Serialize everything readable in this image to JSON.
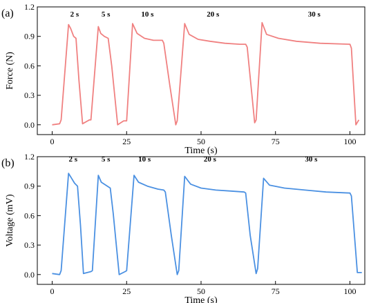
{
  "chart_data": [
    {
      "type": "line",
      "panel_label": "(a)",
      "xlabel": "Time (s)",
      "ylabel": "Force (N)",
      "xlim": [
        -5,
        105
      ],
      "ylim": [
        -0.1,
        1.2
      ],
      "xticks": [
        0,
        25,
        50,
        75,
        100
      ],
      "yticks": [
        0.0,
        0.3,
        0.6,
        0.9,
        1.2
      ],
      "xtick_labels": [
        "0",
        "25",
        "50",
        "75",
        "100"
      ],
      "ytick_labels": [
        "0.0",
        "0.3",
        "0.6",
        "0.9",
        "1.2"
      ],
      "grid": false,
      "color": "#f08080",
      "annotations": [
        {
          "text": "2 s",
          "x": 7.5,
          "y": 1.1
        },
        {
          "text": "5 s",
          "x": 18,
          "y": 1.1
        },
        {
          "text": "10 s",
          "x": 32,
          "y": 1.1
        },
        {
          "text": "20 s",
          "x": 54,
          "y": 1.1
        },
        {
          "text": "30 s",
          "x": 88,
          "y": 1.1
        }
      ],
      "series": [
        {
          "x": [
            0,
            2.5,
            3,
            5.5,
            6.2,
            7.2,
            8,
            9,
            10.2,
            12.5,
            13,
            15.5,
            16.3,
            17.5,
            18.8,
            20,
            22,
            24,
            25,
            27,
            28.5,
            31,
            34,
            37,
            37.5,
            39.5,
            41.5,
            42,
            44.5,
            46,
            49,
            53,
            58,
            63,
            65,
            65.5,
            68,
            68.5,
            70.5,
            72,
            76,
            82,
            90,
            100,
            100.5,
            102,
            103
          ],
          "values": [
            0.0,
            0.01,
            0.05,
            1.02,
            0.98,
            0.9,
            0.88,
            0.45,
            0.01,
            0.05,
            0.05,
            1.0,
            0.93,
            0.9,
            0.88,
            0.6,
            0.0,
            0.04,
            0.04,
            1.03,
            0.93,
            0.88,
            0.86,
            0.86,
            0.83,
            0.4,
            0.0,
            0.04,
            1.03,
            0.92,
            0.87,
            0.85,
            0.83,
            0.82,
            0.82,
            0.79,
            0.02,
            0.05,
            1.04,
            0.92,
            0.88,
            0.85,
            0.83,
            0.82,
            0.78,
            0.0,
            0.05
          ]
        }
      ]
    },
    {
      "type": "line",
      "panel_label": "(b)",
      "xlabel": "Time (s)",
      "ylabel": "Voltage (mV)",
      "xlim": [
        -5,
        105
      ],
      "ylim": [
        -0.1,
        1.2
      ],
      "xticks": [
        0,
        25,
        50,
        75,
        100
      ],
      "yticks": [
        0.0,
        0.3,
        0.6,
        0.9,
        1.2
      ],
      "xtick_labels": [
        "0",
        "25",
        "50",
        "75",
        "100"
      ],
      "ytick_labels": [
        "0.0",
        "0.3",
        "0.6",
        "0.9",
        "1.2"
      ],
      "grid": false,
      "color": "#4a90e2",
      "annotations": [
        {
          "text": "2 s",
          "x": 7,
          "y": 1.15
        },
        {
          "text": "5 s",
          "x": 18,
          "y": 1.15
        },
        {
          "text": "10 s",
          "x": 31,
          "y": 1.15
        },
        {
          "text": "20 s",
          "x": 53,
          "y": 1.15
        },
        {
          "text": "30 s",
          "x": 87,
          "y": 1.15
        }
      ],
      "series": [
        {
          "x": [
            0,
            2.5,
            3,
            5.5,
            6.5,
            7.5,
            8.5,
            9.5,
            10.5,
            13,
            13.5,
            15.5,
            16.5,
            18,
            19.5,
            20.5,
            22.5,
            24.5,
            25,
            27.5,
            29,
            32,
            35.5,
            37.5,
            38,
            40,
            42,
            42.5,
            44.5,
            46.5,
            50,
            55,
            60,
            64.5,
            65,
            66.5,
            68.5,
            69,
            71,
            73,
            78,
            85,
            92,
            100,
            100.5,
            102.5,
            104
          ],
          "values": [
            0.01,
            0.0,
            0.04,
            1.03,
            0.98,
            0.93,
            0.9,
            0.5,
            0.01,
            0.03,
            0.04,
            1.01,
            0.94,
            0.91,
            0.88,
            0.62,
            0.0,
            0.03,
            0.04,
            1.01,
            0.94,
            0.9,
            0.87,
            0.86,
            0.84,
            0.4,
            0.0,
            0.04,
            1.0,
            0.92,
            0.88,
            0.86,
            0.85,
            0.84,
            0.83,
            0.4,
            0.01,
            0.06,
            0.98,
            0.91,
            0.88,
            0.86,
            0.84,
            0.83,
            0.8,
            0.02,
            0.02
          ]
        }
      ]
    }
  ]
}
